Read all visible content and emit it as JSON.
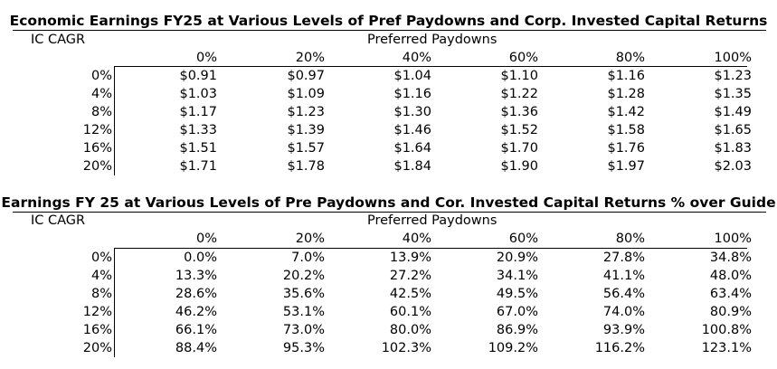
{
  "tables": [
    {
      "title": "Economic Earnings FY25 at Various Levels of Pref Paydowns and Corp. Invested Capital Returns",
      "row_axis_label": "IC CAGR",
      "col_axis_label": "Preferred Paydowns",
      "columns": [
        "0%",
        "20%",
        "40%",
        "60%",
        "80%",
        "100%"
      ],
      "rows": [
        {
          "label": "0%",
          "values": [
            "$0.91",
            "$0.97",
            "$1.04",
            "$1.10",
            "$1.16",
            "$1.23"
          ]
        },
        {
          "label": "4%",
          "values": [
            "$1.03",
            "$1.09",
            "$1.16",
            "$1.22",
            "$1.28",
            "$1.35"
          ]
        },
        {
          "label": "8%",
          "values": [
            "$1.17",
            "$1.23",
            "$1.30",
            "$1.36",
            "$1.42",
            "$1.49"
          ]
        },
        {
          "label": "12%",
          "values": [
            "$1.33",
            "$1.39",
            "$1.46",
            "$1.52",
            "$1.58",
            "$1.65"
          ]
        },
        {
          "label": "16%",
          "values": [
            "$1.51",
            "$1.57",
            "$1.64",
            "$1.70",
            "$1.76",
            "$1.83"
          ]
        },
        {
          "label": "20%",
          "values": [
            "$1.71",
            "$1.78",
            "$1.84",
            "$1.90",
            "$1.97",
            "$2.03"
          ]
        }
      ]
    },
    {
      "title": "Earnings FY 25 at Various Levels of Pre Paydowns and Cor. Invested Capital Returns % over Guide",
      "row_axis_label": "IC CAGR",
      "col_axis_label": "Preferred Paydowns",
      "columns": [
        "0%",
        "20%",
        "40%",
        "60%",
        "80%",
        "100%"
      ],
      "rows": [
        {
          "label": "0%",
          "values": [
            "0.0%",
            "7.0%",
            "13.9%",
            "20.9%",
            "27.8%",
            "34.8%"
          ]
        },
        {
          "label": "4%",
          "values": [
            "13.3%",
            "20.2%",
            "27.2%",
            "34.1%",
            "41.1%",
            "48.0%"
          ]
        },
        {
          "label": "8%",
          "values": [
            "28.6%",
            "35.6%",
            "42.5%",
            "49.5%",
            "56.4%",
            "63.4%"
          ]
        },
        {
          "label": "12%",
          "values": [
            "46.2%",
            "53.1%",
            "60.1%",
            "67.0%",
            "74.0%",
            "80.9%"
          ]
        },
        {
          "label": "16%",
          "values": [
            "66.1%",
            "73.0%",
            "80.0%",
            "86.9%",
            "93.9%",
            "100.8%"
          ]
        },
        {
          "label": "20%",
          "values": [
            "88.4%",
            "95.3%",
            "102.3%",
            "109.2%",
            "116.2%",
            "123.1%"
          ]
        }
      ]
    }
  ]
}
